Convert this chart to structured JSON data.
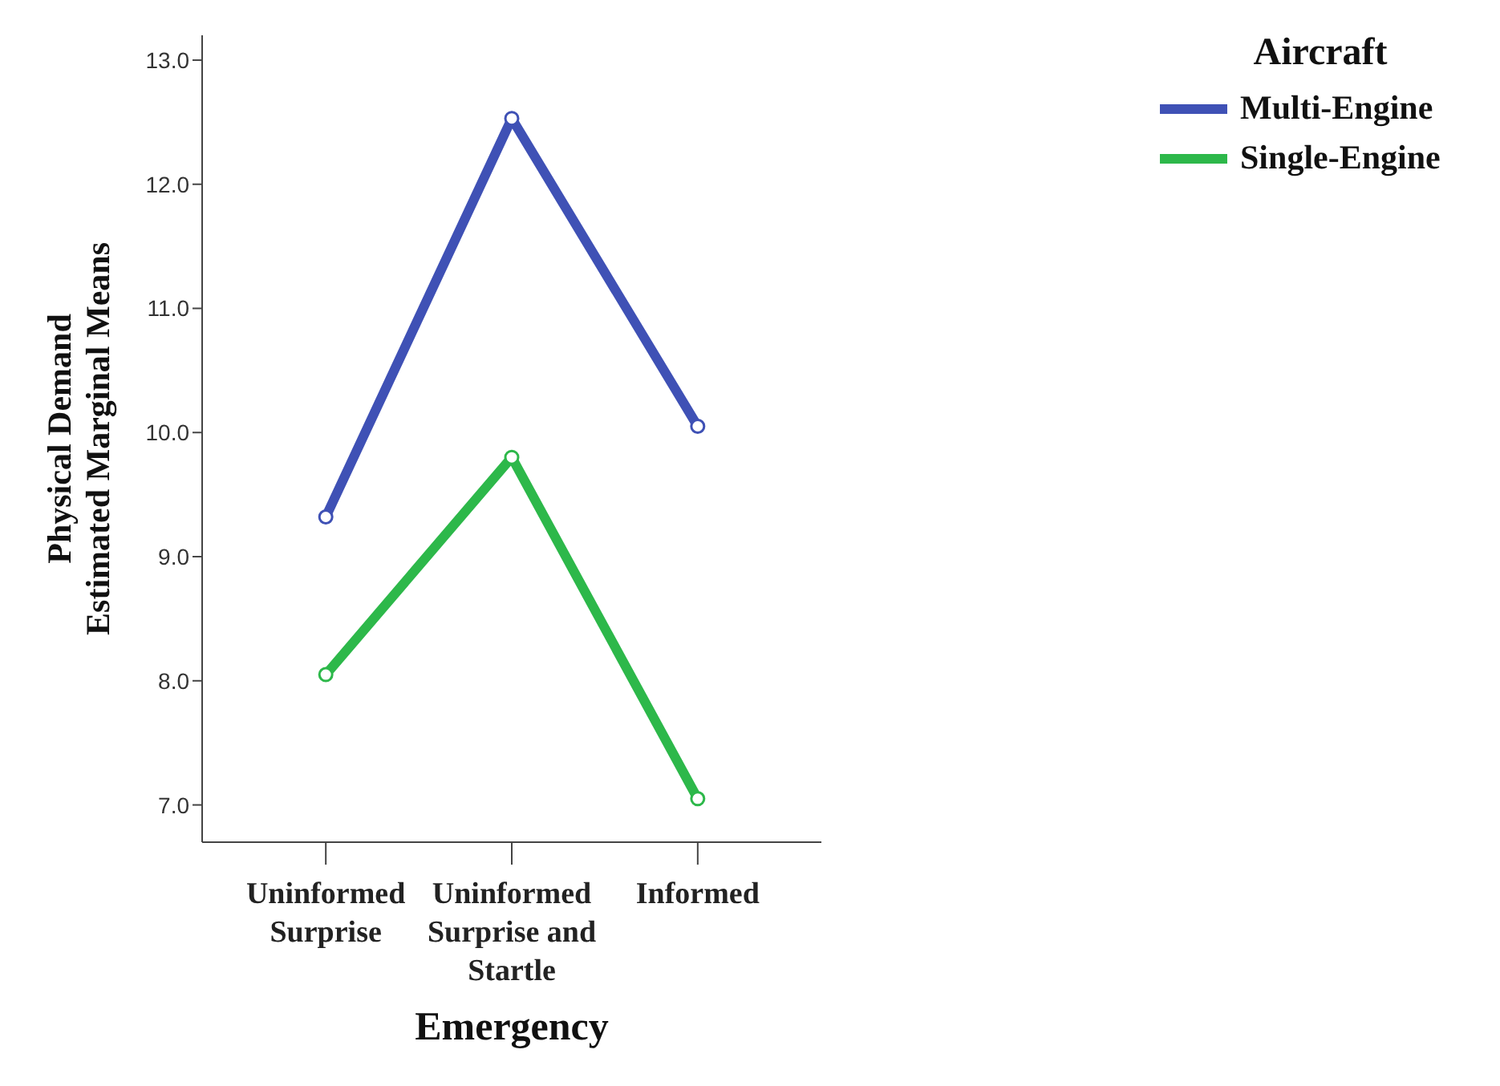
{
  "chart_data": {
    "type": "line",
    "xlabel": "Emergency",
    "ylabel": "Physical Demand\nEstimated Marginal Means",
    "legend_title": "Aircraft",
    "legend": "top right",
    "marker": "circle",
    "line_style": "solid",
    "grid": false,
    "categories": [
      "Uninformed Surprise",
      "Uninformed Surprise and Startle",
      "Informed"
    ],
    "series": [
      {
        "name": "Multi-Engine",
        "color": "#3f51b5",
        "values": [
          9.32,
          12.53,
          10.05
        ]
      },
      {
        "name": "Single-Engine",
        "color": "#2db84a",
        "values": [
          8.05,
          9.8,
          7.05
        ]
      }
    ],
    "ylim": [
      6.7,
      13.2
    ],
    "yticks": [
      {
        "value": 7,
        "label": "7.0"
      },
      {
        "value": 8,
        "label": "8.0"
      },
      {
        "value": 9,
        "label": "9.0"
      },
      {
        "value": 10,
        "label": "10.0"
      },
      {
        "value": 11,
        "label": "11.0"
      },
      {
        "value": 12,
        "label": "12.0"
      },
      {
        "value": 13,
        "label": "13.0"
      }
    ]
  }
}
